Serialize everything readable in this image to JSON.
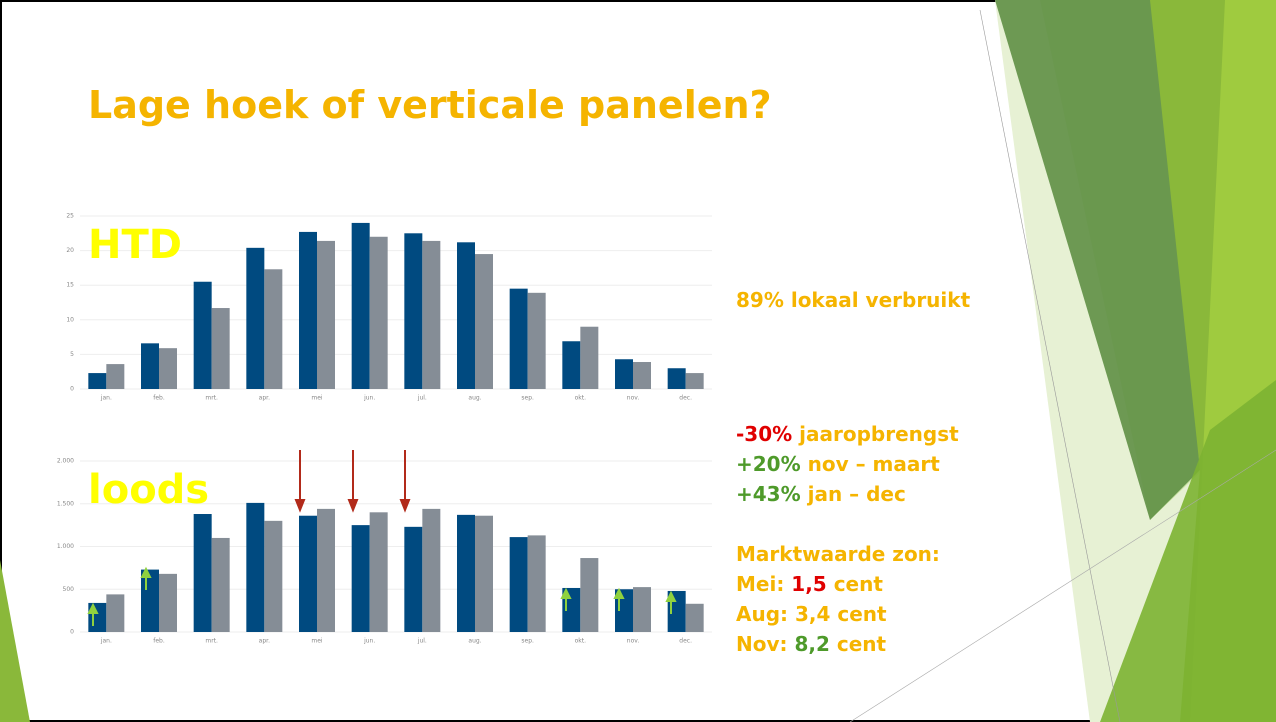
{
  "title": "Lage hoek of verticale panelen?",
  "chart_data": [
    {
      "type": "bar",
      "title": "HTD",
      "categories": [
        "jan.",
        "feb.",
        "mrt.",
        "apr.",
        "mei",
        "jun.",
        "jul.",
        "aug.",
        "sep.",
        "okt.",
        "nov.",
        "dec."
      ],
      "series": [
        {
          "color": "#004a80",
          "values": [
            2.3,
            6.6,
            15.5,
            20.4,
            22.7,
            24.0,
            22.5,
            21.2,
            14.5,
            6.9,
            4.3,
            3.0
          ]
        },
        {
          "color": "#858d96",
          "values": [
            3.6,
            5.9,
            11.7,
            17.3,
            21.4,
            22.0,
            21.4,
            19.5,
            13.9,
            9.0,
            3.9,
            2.3
          ]
        }
      ],
      "ylim": [
        0,
        25
      ],
      "yticks": [
        0,
        5,
        10,
        15,
        20,
        25
      ],
      "grid": true
    },
    {
      "type": "bar",
      "title": "loods",
      "categories": [
        "jan.",
        "feb.",
        "mrt.",
        "apr.",
        "mei",
        "jun.",
        "jul.",
        "aug.",
        "sep.",
        "okt.",
        "nov.",
        "dec."
      ],
      "series": [
        {
          "color": "#004a80",
          "values": [
            340,
            730,
            1380,
            1510,
            1360,
            1250,
            1230,
            1370,
            1110,
            515,
            500,
            480
          ]
        },
        {
          "color": "#858d96",
          "values": [
            440,
            680,
            1100,
            1300,
            1440,
            1400,
            1440,
            1360,
            1130,
            865,
            525,
            330
          ]
        }
      ],
      "ylim": [
        0,
        2000
      ],
      "yticks": [
        0,
        500,
        {
          "value": 1000,
          "label": "1.000"
        },
        {
          "value": 1500,
          "label": "1.500"
        },
        {
          "value": 2000,
          "label": "2.000"
        }
      ],
      "grid": true
    }
  ],
  "notes": [
    [
      {
        "text": "89% lokaal verbruikt",
        "color": "#f5b400"
      }
    ],
    [
      {
        "text": "-30%",
        "color": "#e00000"
      },
      {
        "text": " jaaropbrengst",
        "color": "#f5b400"
      }
    ],
    [
      {
        "text": "+20%",
        "color": "#4e9a2a"
      },
      {
        "text": " nov – maart",
        "color": "#f5b400"
      }
    ],
    [
      {
        "text": "+43%",
        "color": "#4e9a2a"
      },
      {
        "text": " jan – dec",
        "color": "#f5b400"
      }
    ],
    [
      {
        "text": "Marktwaarde zon:",
        "color": "#f5b400"
      }
    ],
    [
      {
        "text": "Mei: ",
        "color": "#f5b400"
      },
      {
        "text": "1,5",
        "color": "#e00000"
      },
      {
        "text": " cent",
        "color": "#f5b400"
      }
    ],
    [
      {
        "text": "Aug: 3,4 cent",
        "color": "#f5b400"
      }
    ],
    [
      {
        "text": "Nov: ",
        "color": "#f5b400"
      },
      {
        "text": "8,2",
        "color": "#4e9a2a"
      },
      {
        "text": " cent",
        "color": "#f5b400"
      }
    ]
  ]
}
